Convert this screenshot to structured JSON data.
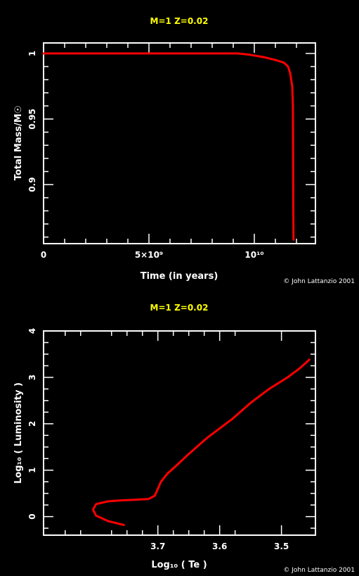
{
  "chart_data": [
    {
      "type": "line",
      "title": "M=1  Z=0.02",
      "xlabel": "Time (in years)",
      "ylabel": "Total Mass/M☉",
      "xlim": [
        0,
        12900000000
      ],
      "ylim": [
        0.855,
        1.008
      ],
      "x_ticks": [
        {
          "value": 0,
          "label": "0"
        },
        {
          "value": 5000000000,
          "label": "5×10⁹"
        },
        {
          "value": 10000000000,
          "label": "10¹⁰"
        }
      ],
      "y_ticks": [
        {
          "value": 0.9,
          "label": "0.9"
        },
        {
          "value": 0.95,
          "label": "0.95"
        },
        {
          "value": 1,
          "label": "1"
        }
      ],
      "series": [
        {
          "color": "#ff0000",
          "points": [
            [
              0,
              1.0
            ],
            [
              9200000000,
              1.0
            ],
            [
              9800000000,
              0.999
            ],
            [
              10500000000,
              0.997
            ],
            [
              11000000000,
              0.995
            ],
            [
              11400000000,
              0.993
            ],
            [
              11600000000,
              0.99
            ],
            [
              11700000000,
              0.985
            ],
            [
              11800000000,
              0.975
            ],
            [
              11830000000,
              0.96
            ],
            [
              11840000000,
              0.92
            ],
            [
              11850000000,
              0.88
            ],
            [
              11860000000,
              0.858
            ]
          ]
        }
      ],
      "credit": "© John Lattanzio 2001"
    },
    {
      "type": "line",
      "title": "M=1  Z=0.02",
      "xlabel": "Log₁₀ ( Te )",
      "ylabel": "Log₁₀ ( Luminosity )",
      "xlim": [
        3.885,
        3.445
      ],
      "ylim": [
        -0.4,
        4.0
      ],
      "x_ticks": [
        {
          "value": 3.7,
          "label": "3.7"
        },
        {
          "value": 3.6,
          "label": "3.6"
        },
        {
          "value": 3.5,
          "label": "3.5"
        }
      ],
      "y_ticks": [
        {
          "value": 0,
          "label": "0"
        },
        {
          "value": 1,
          "label": "1"
        },
        {
          "value": 2,
          "label": "2"
        },
        {
          "value": 3,
          "label": "3"
        },
        {
          "value": 4,
          "label": "4"
        }
      ],
      "series": [
        {
          "color": "#ff0000",
          "points": [
            [
              3.755,
              -0.18
            ],
            [
              3.78,
              -0.1
            ],
            [
              3.8,
              0.02
            ],
            [
              3.805,
              0.15
            ],
            [
              3.8,
              0.27
            ],
            [
              3.78,
              0.33
            ],
            [
              3.76,
              0.35
            ],
            [
              3.74,
              0.36
            ],
            [
              3.715,
              0.38
            ],
            [
              3.705,
              0.45
            ],
            [
              3.7,
              0.6
            ],
            [
              3.695,
              0.75
            ],
            [
              3.685,
              0.92
            ],
            [
              3.67,
              1.1
            ],
            [
              3.65,
              1.35
            ],
            [
              3.62,
              1.7
            ],
            [
              3.58,
              2.1
            ],
            [
              3.55,
              2.45
            ],
            [
              3.52,
              2.75
            ],
            [
              3.49,
              3.0
            ],
            [
              3.47,
              3.2
            ],
            [
              3.455,
              3.38
            ]
          ]
        }
      ],
      "credit": "© John Lattanzio 2001"
    }
  ]
}
